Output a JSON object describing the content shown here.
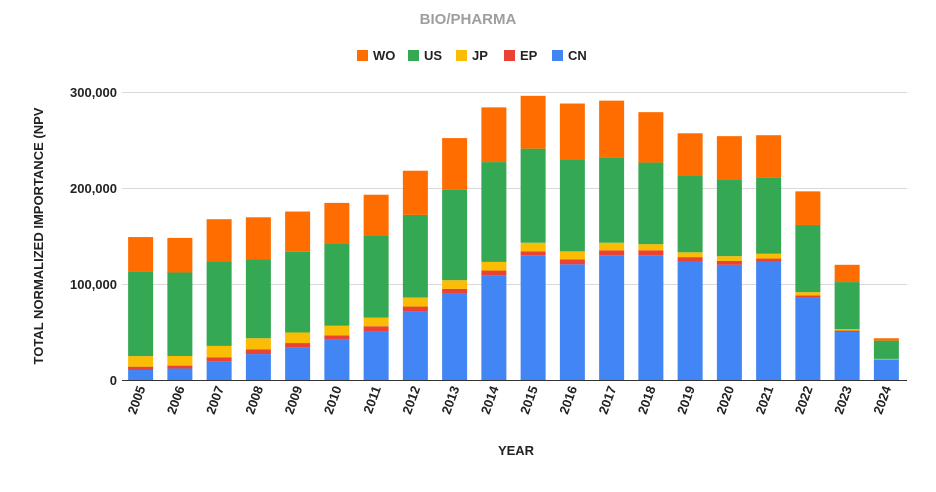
{
  "chart_data": {
    "type": "bar",
    "stacked": true,
    "title": "BIO/PHARMA",
    "xlabel": "YEAR",
    "ylabel": "TOTAL NORMALIZED IMPORTANCE (NPV",
    "ylim": [
      0,
      300000
    ],
    "yticks": [
      0,
      100000,
      200000,
      300000
    ],
    "ytick_labels": [
      "0",
      "100,000",
      "200,000",
      "300,000"
    ],
    "grid": true,
    "legend_position": "top",
    "legend_order": [
      "WO",
      "US",
      "JP",
      "EP",
      "CN"
    ],
    "categories": [
      "2005",
      "2006",
      "2007",
      "2008",
      "2009",
      "2010",
      "2011",
      "2012",
      "2013",
      "2014",
      "2015",
      "2016",
      "2017",
      "2018",
      "2019",
      "2020",
      "2021",
      "2022",
      "2023",
      "2024"
    ],
    "series": [
      {
        "name": "CN",
        "color": "#4285F4",
        "values": [
          10400,
          12000,
          19000,
          27000,
          34000,
          42000,
          51000,
          71000,
          90000,
          109000,
          130000,
          120500,
          130000,
          130000,
          123000,
          120000,
          123000,
          86000,
          50000,
          21000
        ]
      },
      {
        "name": "EP",
        "color": "#EA4335",
        "values": [
          3500,
          3000,
          4500,
          5000,
          4500,
          4500,
          5000,
          5500,
          5000,
          5000,
          4000,
          5000,
          5000,
          5000,
          5000,
          4000,
          3500,
          2000,
          1500,
          500
        ]
      },
      {
        "name": "JP",
        "color": "#FBBC04",
        "values": [
          11000,
          10000,
          12000,
          11500,
          11000,
          10000,
          9000,
          9500,
          9000,
          9000,
          9000,
          8500,
          8000,
          6500,
          5000,
          5000,
          5000,
          3500,
          1500,
          500
        ]
      },
      {
        "name": "US",
        "color": "#34A853",
        "values": [
          88000,
          87000,
          88000,
          82000,
          84000,
          86000,
          85000,
          86000,
          94000,
          104000,
          98000,
          96000,
          89000,
          85000,
          79500,
          80000,
          79000,
          70000,
          49000,
          19000
        ]
      },
      {
        "name": "WO",
        "color": "#FF6D01",
        "values": [
          36000,
          36000,
          44000,
          44000,
          42000,
          42000,
          43000,
          46000,
          54000,
          57000,
          55000,
          58000,
          59000,
          52500,
          44500,
          45000,
          44500,
          35000,
          18000,
          2500
        ]
      }
    ]
  }
}
